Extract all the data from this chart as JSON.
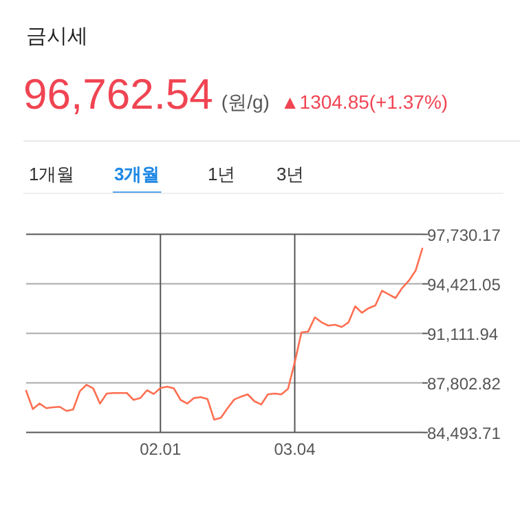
{
  "chart_data": {
    "type": "line",
    "title": "금시세",
    "annotations": [
      "96,762.54",
      "(원/g)",
      "▲1304.85(+1.37%)",
      "1개월",
      "3개월",
      "1년",
      "3년"
    ],
    "categories": [
      null,
      null,
      null,
      null,
      null,
      null,
      null,
      null,
      null,
      null,
      null,
      null,
      null,
      null,
      null,
      null,
      null,
      null,
      null,
      null,
      "02.01",
      null,
      null,
      null,
      null,
      null,
      null,
      null,
      null,
      null,
      null,
      null,
      null,
      null,
      null,
      null,
      null,
      null,
      null,
      null,
      "03.04",
      null,
      null,
      null,
      null,
      null,
      null,
      null,
      null,
      null,
      null,
      null,
      null,
      null,
      null,
      null,
      null,
      null,
      null,
      null
    ],
    "series": [
      {
        "color": "#ff6e50",
        "values": [
          87282,
          86057,
          86424,
          86118,
          86179,
          86210,
          85934,
          86026,
          87251,
          87680,
          87435,
          86424,
          87098,
          87129,
          87129,
          87129,
          86669,
          86792,
          87313,
          87067,
          87466,
          87558,
          87435,
          86669,
          86424,
          86792,
          86853,
          86731,
          85352,
          85474,
          86118,
          86700,
          86884,
          87037,
          86578,
          86363,
          87037,
          87098,
          87037,
          87405,
          89182,
          91174,
          91235,
          92185,
          91848,
          91633,
          91694,
          91541,
          91848,
          92920,
          92491,
          92797,
          92981,
          93962,
          93717,
          93472,
          94146,
          94636,
          95310,
          96781
        ]
      }
    ],
    "ylim": [
      84493.71,
      97730.17
    ],
    "yticks": [
      {
        "value": 84493.71,
        "label": "84,493.71"
      },
      {
        "value": 87802.82,
        "label": "87,802.82"
      },
      {
        "value": 91111.94,
        "label": "91,111.94"
      },
      {
        "value": 94421.05,
        "label": "94,421.05"
      },
      {
        "value": 97730.17,
        "label": "97,730.17"
      }
    ],
    "grid": true
  }
}
